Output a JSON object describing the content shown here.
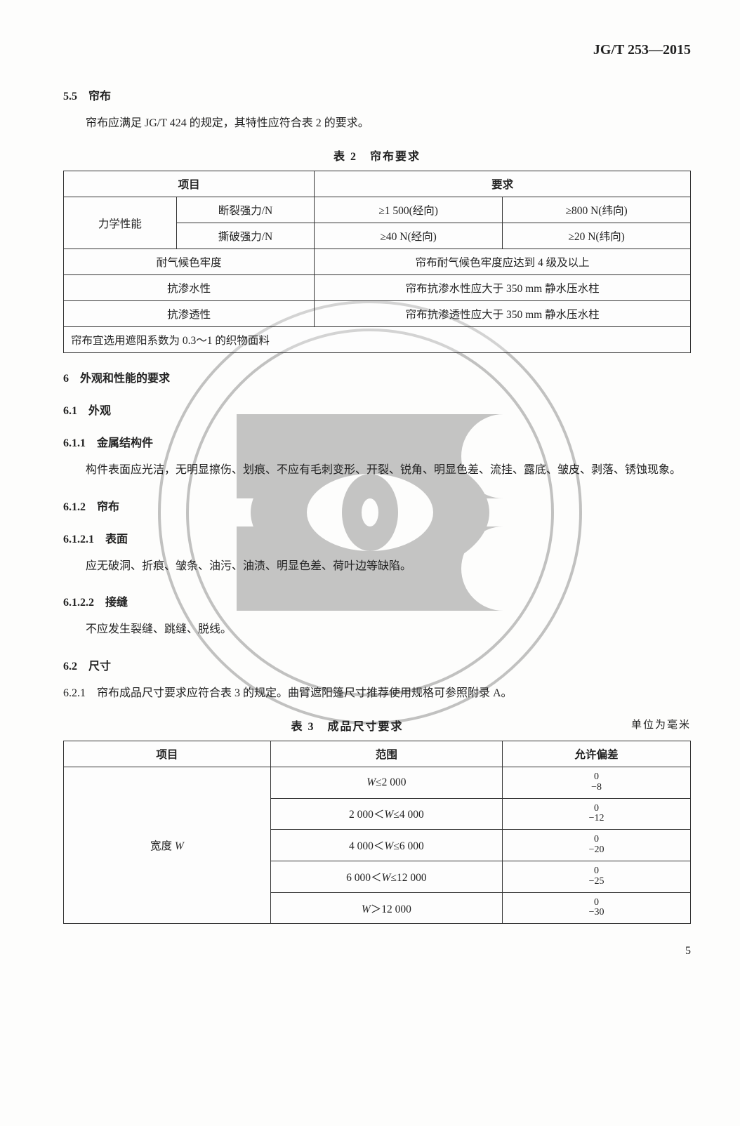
{
  "doc_code": "JG/T 253—2015",
  "s55": {
    "num": "5.5",
    "title": "帘布",
    "text": "帘布应满足 JG/T 424 的规定，其特性应符合表 2 的要求。"
  },
  "table2": {
    "caption": "表 2　帘布要求",
    "head_item": "项目",
    "head_req": "要求",
    "mech_label": "力学性能",
    "r1_label": "断裂强力/N",
    "r1_c1": "≥1 500(经向)",
    "r1_c2": "≥800 N(纬向)",
    "r2_label": "撕破强力/N",
    "r2_c1": "≥40 N(经向)",
    "r2_c2": "≥20 N(纬向)",
    "r3_label": "耐气候色牢度",
    "r3_req": "帘布耐气候色牢度应达到 4 级及以上",
    "r4_label": "抗渗水性",
    "r4_req": "帘布抗渗水性应大于 350 mm 静水压水柱",
    "r5_label": "抗渗透性",
    "r5_req": "帘布抗渗透性应大于 350 mm 静水压水柱",
    "note": "帘布宜选用遮阳系数为 0.3～1 的织物面料"
  },
  "s6": {
    "num": "6",
    "title": "外观和性能的要求"
  },
  "s61": {
    "num": "6.1",
    "title": "外观"
  },
  "s611": {
    "num": "6.1.1",
    "title": "金属结构件",
    "text": "构件表面应光洁，无明显擦伤、划痕、不应有毛刺变形、开裂、锐角、明显色差、流挂、露底、皱皮、剥落、锈蚀现象。"
  },
  "s612": {
    "num": "6.1.2",
    "title": "帘布"
  },
  "s6121": {
    "num": "6.1.2.1",
    "title": "表面",
    "text": "应无破洞、折痕、皱条、油污、油渍、明显色差、荷叶边等缺陷。"
  },
  "s6122": {
    "num": "6.1.2.2",
    "title": "接缝",
    "text": "不应发生裂缝、跳缝、脱线。"
  },
  "s62": {
    "num": "6.2",
    "title": "尺寸"
  },
  "s621": {
    "text": "6.2.1　帘布成品尺寸要求应符合表 3 的规定。曲臂遮阳篷尺寸推荐使用规格可参照附录 A。"
  },
  "table3": {
    "caption": "表 3　成品尺寸要求",
    "unit": "单位为毫米",
    "h1": "项目",
    "h2": "范围",
    "h3": "允许偏差",
    "width_label": "宽度 W",
    "rows": [
      {
        "range": "W≤2 000",
        "tol_top": "0",
        "tol_bot": "−8"
      },
      {
        "range": "2 000＜W≤4 000",
        "tol_top": "0",
        "tol_bot": "−12"
      },
      {
        "range": "4 000＜W≤6 000",
        "tol_top": "0",
        "tol_bot": "−20"
      },
      {
        "range": "6 000＜W≤12 000",
        "tol_top": "0",
        "tol_bot": "−25"
      },
      {
        "range": "W＞12 000",
        "tol_top": "0",
        "tol_bot": "−30"
      }
    ]
  },
  "page_number": "5",
  "watermark": {
    "outer_stroke": "#7a7a78",
    "inner_fill": "#808080"
  }
}
